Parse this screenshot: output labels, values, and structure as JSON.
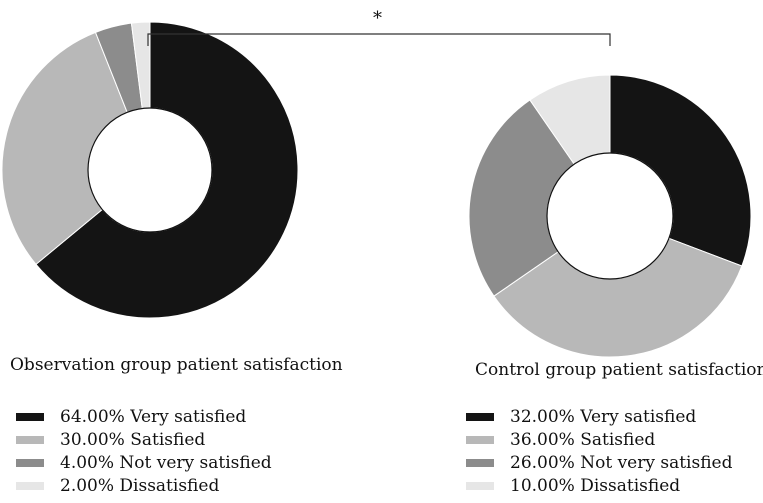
{
  "chart_data": [
    {
      "type": "pie",
      "variant": "donut",
      "title": "Observation group patient satisfaction",
      "slices": [
        {
          "label": "Very satisfied",
          "value": 64.0,
          "display": "64.00% Very satisfied",
          "color": "#141414"
        },
        {
          "label": "Satisfied",
          "value": 30.0,
          "display": "30.00% Satisfied",
          "color": "#b8b8b8"
        },
        {
          "label": "Not very satisfied",
          "value": 4.0,
          "display": "4.00% Not very satisfied",
          "color": "#8c8c8c"
        },
        {
          "label": "Dissatisfied",
          "value": 2.0,
          "display": "2.00% Dissatisfied",
          "color": "#e6e6e6"
        }
      ],
      "legend_position": "bottom"
    },
    {
      "type": "pie",
      "variant": "donut",
      "title": "Control group patient satisfaction",
      "slices": [
        {
          "label": "Very satisfied",
          "value": 32.0,
          "display": "32.00% Very satisfied",
          "color": "#141414"
        },
        {
          "label": "Satisfied",
          "value": 36.0,
          "display": "36.00% Satisfied",
          "color": "#b8b8b8"
        },
        {
          "label": "Not very satisfied",
          "value": 26.0,
          "display": "26.00% Not very satisfied",
          "color": "#8c8c8c"
        },
        {
          "label": "Dissatisfied",
          "value": 10.0,
          "display": "10.00% Dissatisfied",
          "color": "#e6e6e6"
        }
      ],
      "legend_position": "bottom"
    }
  ],
  "significance": {
    "marker": "*"
  }
}
